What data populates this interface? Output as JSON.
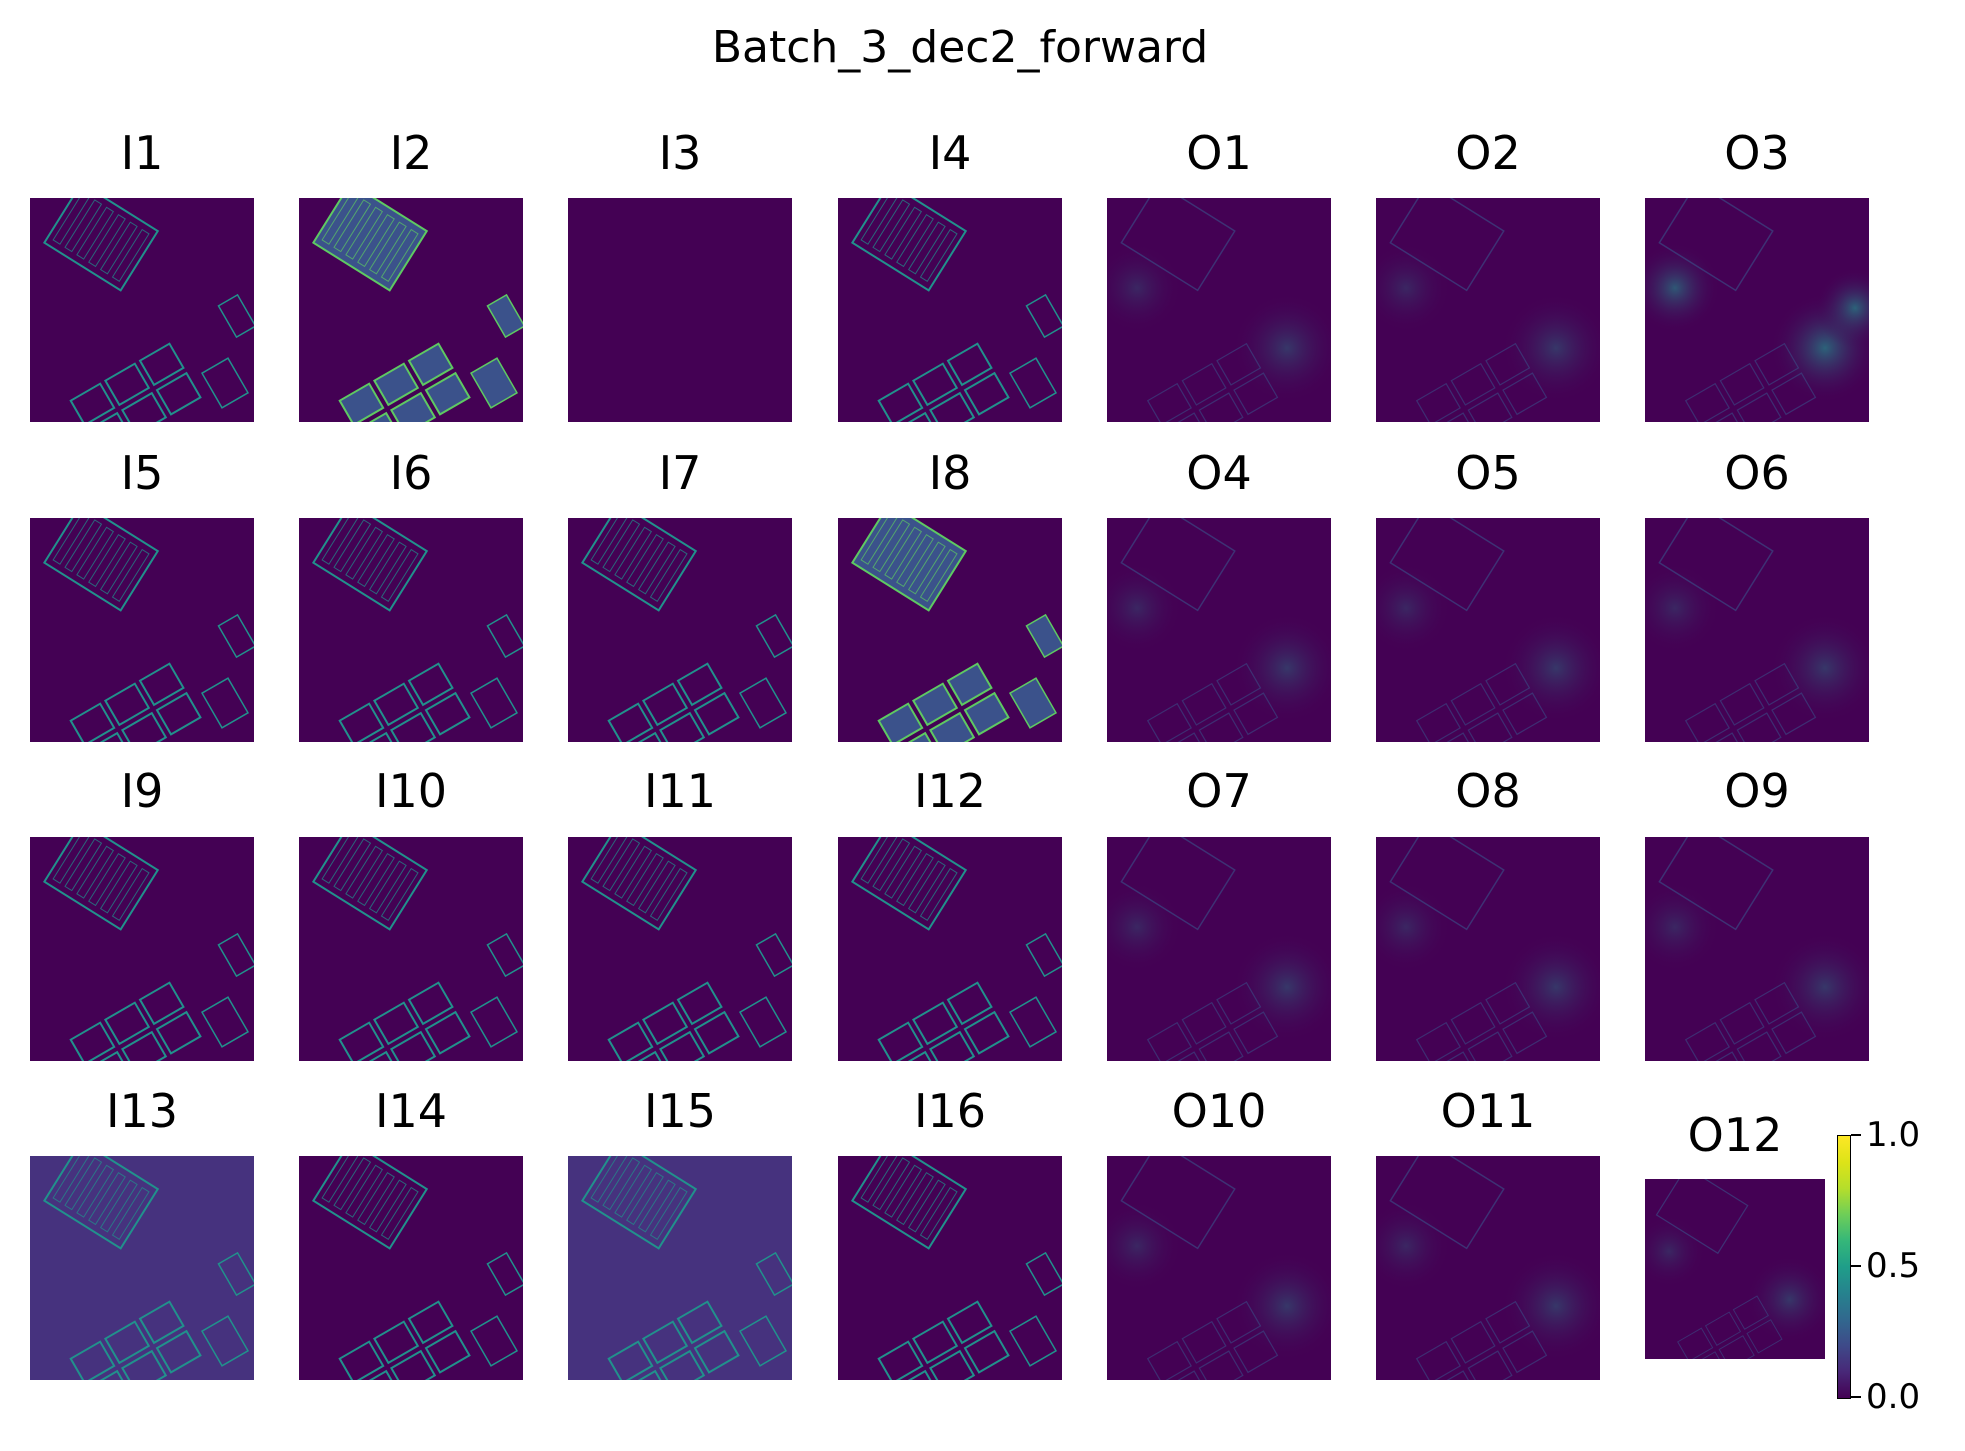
{
  "chart_data": {
    "type": "heatmap",
    "title": "Batch_3_dec2_forward",
    "colormap": "viridis",
    "panels": [
      {
        "label": "I1",
        "kind": "input"
      },
      {
        "label": "I2",
        "kind": "input-bright"
      },
      {
        "label": "I3",
        "kind": "blank"
      },
      {
        "label": "I4",
        "kind": "input"
      },
      {
        "label": "O1",
        "kind": "output"
      },
      {
        "label": "O2",
        "kind": "output"
      },
      {
        "label": "O3",
        "kind": "output-bright"
      },
      {
        "label": "I5",
        "kind": "input"
      },
      {
        "label": "I6",
        "kind": "input"
      },
      {
        "label": "I7",
        "kind": "input"
      },
      {
        "label": "I8",
        "kind": "input-bright"
      },
      {
        "label": "O4",
        "kind": "output"
      },
      {
        "label": "O5",
        "kind": "output"
      },
      {
        "label": "O6",
        "kind": "output"
      },
      {
        "label": "I9",
        "kind": "input"
      },
      {
        "label": "I10",
        "kind": "input"
      },
      {
        "label": "I11",
        "kind": "input"
      },
      {
        "label": "I12",
        "kind": "input"
      },
      {
        "label": "O7",
        "kind": "output"
      },
      {
        "label": "O8",
        "kind": "output"
      },
      {
        "label": "O9",
        "kind": "output"
      },
      {
        "label": "I13",
        "kind": "input-bg"
      },
      {
        "label": "I14",
        "kind": "input"
      },
      {
        "label": "I15",
        "kind": "input-bg"
      },
      {
        "label": "I16",
        "kind": "input"
      },
      {
        "label": "O10",
        "kind": "output"
      },
      {
        "label": "O11",
        "kind": "output"
      },
      {
        "label": "O12",
        "kind": "output"
      }
    ],
    "colorbar": {
      "min": 0.0,
      "max": 1.0,
      "ticks": [
        "0.0",
        "0.5",
        "1.0"
      ]
    },
    "colors": {
      "low": "#440154",
      "mid": "#21918c",
      "high": "#fde725"
    }
  }
}
